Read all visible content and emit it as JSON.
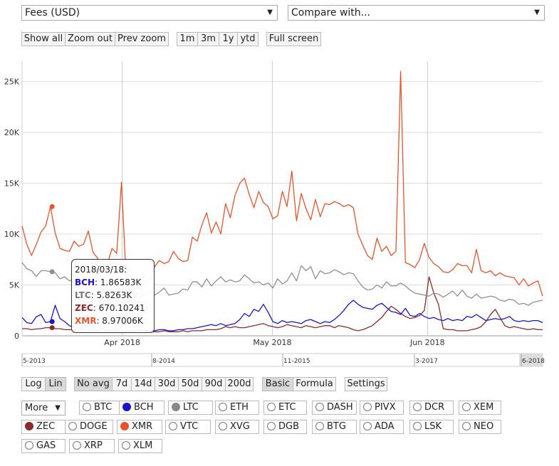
{
  "controls": {
    "metric_select": "Fees (USD)",
    "compare_select": "Compare with...",
    "zoom_buttons": [
      "Show all",
      "Zoom out",
      "Prev zoom"
    ],
    "range_buttons": [
      "1m",
      "3m",
      "1y",
      "ytd"
    ],
    "fullscreen_button": "Full screen",
    "scale_buttons": [
      "Log",
      "Lin"
    ],
    "avg_buttons": [
      "No avg",
      "7d",
      "14d",
      "30d",
      "50d",
      "90d",
      "200d"
    ],
    "mode_buttons": [
      "Basic",
      "Formula"
    ],
    "settings_button": "Settings",
    "more_select": "More",
    "arrow_glyph": "▼"
  },
  "coins": [
    {
      "label": "BTC",
      "color": null
    },
    {
      "label": "BCH",
      "color": "#1a14c8"
    },
    {
      "label": "LTC",
      "color": "#888888"
    },
    {
      "label": "ETH",
      "color": null
    },
    {
      "label": "ETC",
      "color": null
    },
    {
      "label": "DASH",
      "color": null
    },
    {
      "label": "PIVX",
      "color": null
    },
    {
      "label": "DCR",
      "color": null
    },
    {
      "label": "XEM",
      "color": null
    },
    {
      "label": "ZEC",
      "color": "#8b2a2a"
    },
    {
      "label": "DOGE",
      "color": null
    },
    {
      "label": "XMR",
      "color": "#e8542a"
    },
    {
      "label": "VTC",
      "color": null
    },
    {
      "label": "XVG",
      "color": null
    },
    {
      "label": "DGB",
      "color": null
    },
    {
      "label": "BTG",
      "color": null
    },
    {
      "label": "ADA",
      "color": null
    },
    {
      "label": "LSK",
      "color": null
    },
    {
      "label": "NEO",
      "color": null
    },
    {
      "label": "GAS",
      "color": null
    },
    {
      "label": "XRP",
      "color": null
    },
    {
      "label": "XLM",
      "color": null
    }
  ],
  "tooltip": {
    "date": "2018/03/18:",
    "rows": [
      {
        "name": "BCH",
        "value": "1.86583K",
        "color": "#1a14c8"
      },
      {
        "name": "LTC",
        "value": "5.8263K",
        "color": "#888888"
      },
      {
        "name": "ZEC",
        "value": "670.10241",
        "color": "#8b2a2a"
      },
      {
        "name": "XMR",
        "value": "8.97006K",
        "color": "#e8542a"
      }
    ]
  },
  "chart_data": {
    "type": "line",
    "x_start": "2018/03/12",
    "x_end": "2018/06/24",
    "x_ticks": [
      {
        "label": "Apr 2018",
        "date": "2018/04/01"
      },
      {
        "label": "May 2018",
        "date": "2018/05/01"
      },
      {
        "label": "Jun 2018",
        "date": "2018/06/01"
      }
    ],
    "ylim": [
      0,
      27000
    ],
    "y_ticks": [
      {
        "label": "0",
        "value": 0
      },
      {
        "label": "5K",
        "value": 5000
      },
      {
        "label": "10K",
        "value": 10000
      },
      {
        "label": "15K",
        "value": 15000
      },
      {
        "label": "20K",
        "value": 20000
      },
      {
        "label": "25K",
        "value": 25000
      }
    ],
    "grid": true,
    "navigator_labels": [
      "5-2013",
      "8-2014",
      "11-2015",
      "3-2017",
      "6-2018"
    ],
    "highlight_date": "2018/03/18",
    "series": [
      {
        "name": "XMR",
        "color": "#e8542a",
        "values": [
          10800,
          9000,
          7900,
          8970,
          10200,
          10800,
          12700,
          10100,
          8600,
          8400,
          8300,
          9300,
          8800,
          9000,
          10300,
          8200,
          7600,
          5200,
          7000,
          8600,
          8100,
          15100,
          5600,
          3500,
          2700,
          3700,
          5900,
          5400,
          6800,
          7400,
          7100,
          7300,
          8300,
          7600,
          7300,
          7400,
          9700,
          9300,
          10900,
          12100,
          10100,
          11200,
          10000,
          13000,
          11600,
          13800,
          15000,
          15500,
          13900,
          12600,
          14200,
          13100,
          12700,
          11500,
          11800,
          14200,
          12700,
          16200,
          11300,
          14000,
          12500,
          11400,
          13400,
          11700,
          13000,
          12900,
          13200,
          13000,
          12700,
          12900,
          12600,
          10000,
          8900,
          7900,
          7500,
          9600,
          8300,
          8800,
          7900,
          8300,
          26000,
          7200,
          7000,
          6700,
          7500,
          9100,
          7700,
          7100,
          6800,
          6300,
          6200,
          6500,
          7100,
          6900,
          6900,
          6200,
          8500,
          6400,
          6200,
          6400,
          5900,
          6200,
          5900,
          5800,
          5700,
          5000,
          5600,
          4900,
          5200,
          5400,
          3900
        ]
      },
      {
        "name": "LTC",
        "color": "#909090",
        "values": [
          7200,
          6600,
          6400,
          5826,
          6400,
          6400,
          6300,
          6200,
          5600,
          5800,
          5400,
          5600,
          5500,
          5300,
          5600,
          5200,
          4800,
          4700,
          4500,
          4400,
          4300,
          4100,
          3600,
          3700,
          4200,
          3800,
          4000,
          4500,
          4000,
          4300,
          4700,
          4000,
          4100,
          4200,
          4600,
          4500,
          5300,
          5300,
          4800,
          5600,
          4900,
          5400,
          5800,
          5300,
          5500,
          5300,
          5400,
          6000,
          5600,
          5200,
          5300,
          5000,
          5200,
          4700,
          5600,
          5100,
          5400,
          6200,
          5400,
          6900,
          6400,
          6800,
          5600,
          6400,
          6100,
          6200,
          6500,
          6300,
          6000,
          6200,
          6100,
          5400,
          4800,
          4500,
          4600,
          5000,
          4700,
          5300,
          4900,
          4900,
          5200,
          4900,
          4500,
          4200,
          4100,
          4000,
          3900,
          4200,
          4100,
          3800,
          4100,
          4400,
          3900,
          4500,
          3900,
          3700,
          4100,
          3700,
          3800,
          3900,
          3800,
          3500,
          3400,
          3600,
          3500,
          3100,
          3200,
          3000,
          3300,
          3400,
          3500
        ]
      },
      {
        "name": "BCH",
        "color": "#1a14c8",
        "values": [
          1800,
          1300,
          1200,
          1866,
          2100,
          1300,
          1400,
          3000,
          1700,
          1400,
          1000,
          800,
          800,
          700,
          1300,
          700,
          600,
          700,
          600,
          600,
          500,
          500,
          400,
          500,
          500,
          600,
          500,
          600,
          500,
          600,
          600,
          500,
          500,
          600,
          600,
          700,
          700,
          800,
          900,
          1000,
          1100,
          1000,
          1200,
          1000,
          1100,
          1200,
          1600,
          2200,
          1900,
          2600,
          2400,
          3100,
          2300,
          1400,
          1200,
          1500,
          1300,
          1400,
          1300,
          1200,
          1500,
          1600,
          1400,
          1200,
          1400,
          1300,
          1600,
          2000,
          2500,
          3100,
          3500,
          3100,
          2800,
          2700,
          2600,
          3000,
          3200,
          2800,
          2400,
          2300,
          2100,
          2700,
          2000,
          1900,
          2200,
          1900,
          1700,
          1800,
          1600,
          1500,
          1700,
          1500,
          1600,
          1500,
          1900,
          1800,
          2100,
          1800,
          1500,
          1600,
          1700,
          1600,
          1700,
          1900,
          1500,
          1400,
          1500,
          1400,
          1500,
          1500,
          1300
        ]
      },
      {
        "name": "ZEC",
        "color": "#8b2a2a",
        "values": [
          700,
          700,
          600,
          670,
          700,
          800,
          800,
          700,
          700,
          600,
          600,
          600,
          600,
          600,
          600,
          500,
          500,
          500,
          500,
          600,
          700,
          600,
          400,
          400,
          400,
          500,
          400,
          400,
          400,
          400,
          500,
          400,
          400,
          400,
          500,
          400,
          500,
          500,
          500,
          600,
          600,
          600,
          700,
          900,
          800,
          900,
          800,
          800,
          900,
          1000,
          1100,
          1200,
          1000,
          900,
          800,
          900,
          1100,
          1000,
          900,
          800,
          1000,
          900,
          800,
          900,
          1000,
          1000,
          800,
          1000,
          900,
          800,
          600,
          500,
          600,
          800,
          1000,
          1400,
          1800,
          2400,
          2900,
          2600,
          2200,
          1900,
          1700,
          1800,
          2000,
          2500,
          5800,
          4200,
          3100,
          700,
          600,
          600,
          500,
          500,
          500,
          600,
          700,
          900,
          1400,
          2100,
          2600,
          1800,
          1000,
          800,
          900,
          800,
          700,
          600,
          700,
          600,
          600
        ]
      }
    ]
  }
}
